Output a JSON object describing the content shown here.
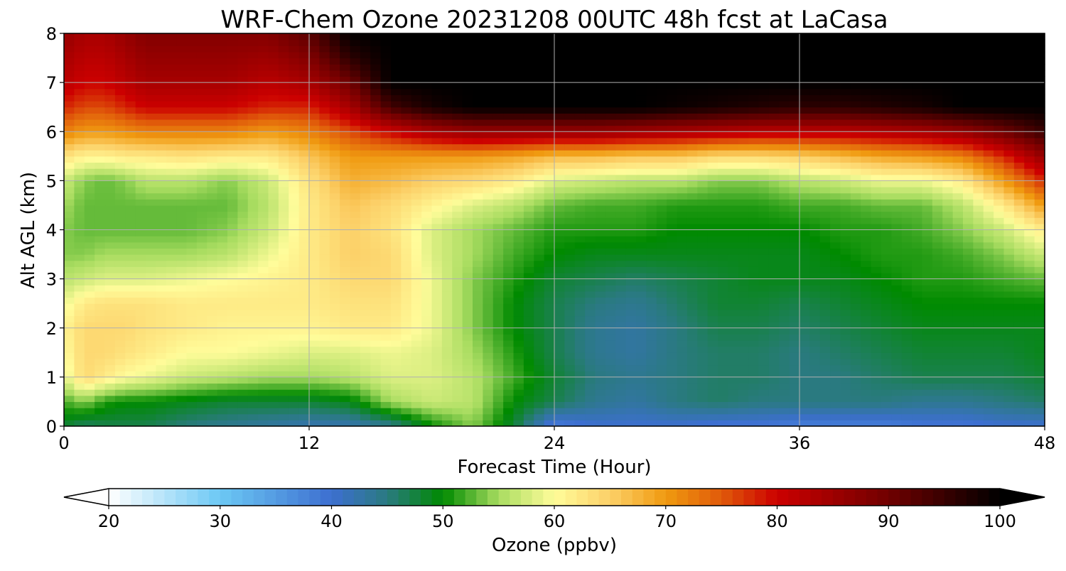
{
  "chart_data": {
    "type": "heatmap",
    "title": "WRF-Chem Ozone  20231208 00UTC 48h fcst at LaCasa",
    "xlabel": "Forecast Time (Hour)",
    "ylabel": "Alt AGL (km)",
    "xlim": [
      0,
      48
    ],
    "ylim": [
      0,
      8
    ],
    "x_ticks": [
      "0",
      "12",
      "24",
      "36",
      "48"
    ],
    "y_ticks": [
      "0",
      "1",
      "2",
      "3",
      "4",
      "5",
      "6",
      "7",
      "8"
    ],
    "grid": true,
    "x": [
      0,
      1,
      2,
      3,
      4,
      6,
      8,
      10,
      12,
      14,
      16,
      18,
      20,
      22,
      24,
      26,
      28,
      30,
      32,
      34,
      36,
      38,
      40,
      42,
      44,
      46,
      48
    ],
    "y": [
      0,
      0.5,
      1,
      1.5,
      2,
      2.5,
      3,
      3.5,
      4,
      4.5,
      5,
      5.5,
      6,
      6.5,
      7,
      7.5,
      8
    ],
    "values_ppbv": [
      [
        48,
        46,
        47,
        47,
        47,
        45,
        44,
        43,
        42,
        42,
        44,
        50,
        54,
        48,
        38,
        40,
        40,
        40,
        39,
        39,
        38,
        38,
        38,
        39,
        39,
        40,
        40
      ],
      [
        52,
        54,
        51,
        50,
        50,
        49,
        48,
        48,
        48,
        49,
        55,
        57,
        56,
        50,
        47,
        44,
        43,
        45,
        46,
        45,
        45,
        45,
        45,
        44,
        44,
        45,
        46
      ],
      [
        58,
        64,
        62,
        60,
        59,
        57,
        56,
        55,
        55,
        56,
        58,
        58,
        56,
        52,
        48,
        45,
        44,
        45,
        46,
        46,
        45,
        45,
        46,
        47,
        47,
        47,
        48
      ],
      [
        60,
        64,
        64,
        63,
        62,
        60,
        60,
        59,
        58,
        58,
        59,
        58,
        55,
        51,
        47,
        44,
        43,
        45,
        46,
        46,
        45,
        46,
        47,
        48,
        48,
        48,
        49
      ],
      [
        61,
        64,
        64,
        64,
        63,
        62,
        61,
        61,
        61,
        62,
        62,
        59,
        54,
        50,
        47,
        44,
        43,
        45,
        47,
        47,
        46,
        47,
        48,
        49,
        49,
        49,
        49
      ],
      [
        59,
        62,
        63,
        63,
        63,
        62,
        62,
        62,
        62,
        63,
        63,
        59,
        54,
        50,
        47,
        45,
        44,
        46,
        48,
        48,
        47,
        48,
        49,
        50,
        50,
        50,
        50
      ],
      [
        56,
        57,
        58,
        58,
        58,
        59,
        60,
        61,
        62,
        64,
        64,
        59,
        54,
        51,
        48,
        47,
        46,
        47,
        48,
        49,
        49,
        49,
        50,
        51,
        51,
        52,
        53
      ],
      [
        54,
        54,
        55,
        55,
        55,
        55,
        56,
        59,
        62,
        65,
        64,
        58,
        55,
        52,
        50,
        49,
        49,
        49,
        49,
        49,
        49,
        50,
        51,
        51,
        52,
        54,
        57
      ],
      [
        54,
        53,
        53,
        53,
        53,
        53,
        54,
        57,
        62,
        65,
        63,
        58,
        55,
        53,
        51,
        51,
        51,
        50,
        50,
        50,
        50,
        51,
        51,
        52,
        54,
        57,
        62
      ],
      [
        55,
        53,
        53,
        53,
        53,
        53,
        53,
        56,
        62,
        66,
        64,
        61,
        58,
        56,
        53,
        52,
        52,
        51,
        51,
        51,
        52,
        52,
        53,
        53,
        56,
        62,
        70
      ],
      [
        57,
        54,
        53,
        54,
        56,
        56,
        54,
        57,
        63,
        68,
        67,
        65,
        64,
        62,
        58,
        57,
        56,
        56,
        54,
        54,
        56,
        57,
        59,
        59,
        62,
        70,
        78
      ],
      [
        63,
        61,
        61,
        62,
        62,
        63,
        62,
        62,
        66,
        70,
        70,
        70,
        70,
        69,
        67,
        67,
        66,
        66,
        64,
        64,
        65,
        67,
        69,
        70,
        72,
        78,
        86
      ],
      [
        72,
        70,
        70,
        71,
        72,
        72,
        72,
        70,
        72,
        76,
        80,
        84,
        86,
        86,
        86,
        86,
        85,
        84,
        83,
        82,
        82,
        82,
        83,
        84,
        86,
        90,
        95
      ],
      [
        78,
        76,
        76,
        78,
        80,
        80,
        80,
        78,
        78,
        84,
        94,
        98,
        100,
        100,
        100,
        100,
        100,
        99,
        98,
        97,
        96,
        96,
        97,
        98,
        100,
        100,
        100
      ],
      [
        82,
        80,
        80,
        82,
        84,
        84,
        84,
        82,
        84,
        90,
        100,
        100,
        100,
        100,
        100,
        100,
        100,
        100,
        100,
        100,
        100,
        100,
        100,
        100,
        100,
        100,
        100
      ],
      [
        84,
        82,
        82,
        84,
        86,
        86,
        86,
        85,
        88,
        96,
        100,
        100,
        100,
        100,
        100,
        100,
        100,
        100,
        100,
        100,
        100,
        100,
        100,
        100,
        100,
        100,
        100
      ],
      [
        86,
        84,
        84,
        86,
        88,
        88,
        88,
        88,
        92,
        100,
        100,
        100,
        100,
        100,
        100,
        100,
        100,
        100,
        100,
        100,
        100,
        100,
        100,
        100,
        100,
        100,
        100
      ]
    ],
    "colorbar": {
      "label": "Ozone  (ppbv)",
      "min": 20,
      "max": 100,
      "ticks": [
        "20",
        "30",
        "40",
        "50",
        "60",
        "70",
        "80",
        "90",
        "100"
      ],
      "extend": "both",
      "colors": [
        {
          "v": 20,
          "c": "#ffffff"
        },
        {
          "v": 30,
          "c": "#6cc8f4"
        },
        {
          "v": 40,
          "c": "#3d6fd0"
        },
        {
          "v": 45,
          "c": "#2a7a80"
        },
        {
          "v": 50,
          "c": "#008a00"
        },
        {
          "v": 55,
          "c": "#a8dc60"
        },
        {
          "v": 60,
          "c": "#fffc9a"
        },
        {
          "v": 65,
          "c": "#fcd068"
        },
        {
          "v": 70,
          "c": "#f09a10"
        },
        {
          "v": 75,
          "c": "#e05a0a"
        },
        {
          "v": 80,
          "c": "#cc0000"
        },
        {
          "v": 90,
          "c": "#700000"
        },
        {
          "v": 100,
          "c": "#000000"
        }
      ]
    }
  }
}
